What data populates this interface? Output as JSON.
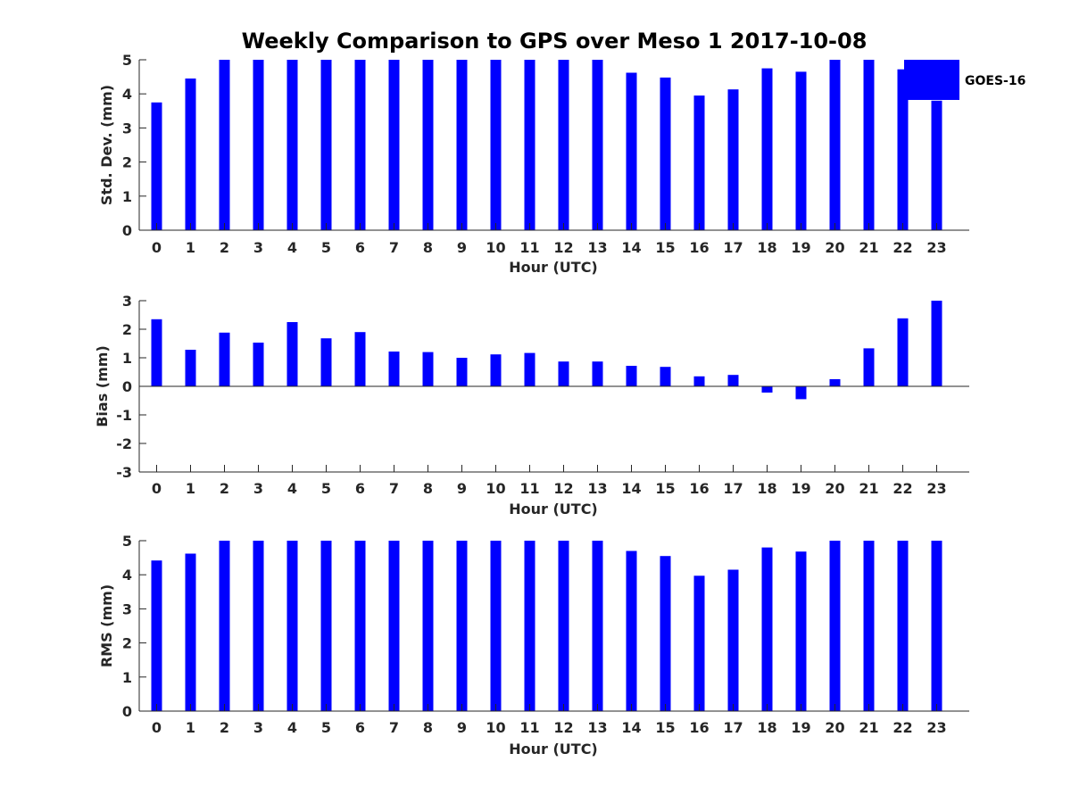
{
  "title": "Weekly Comparison to GPS over Meso 1 2017-10-08",
  "legend": {
    "label": "GOES-16",
    "color": "#0000ff"
  },
  "chart_data": [
    {
      "type": "bar",
      "ylabel": "Std. Dev. (mm)",
      "xlabel": "Hour (UTC)",
      "ylim": [
        0,
        5
      ],
      "yticks": [
        0,
        1,
        2,
        3,
        4,
        5
      ],
      "categories": [
        "0",
        "1",
        "2",
        "3",
        "4",
        "5",
        "6",
        "7",
        "8",
        "9",
        "10",
        "11",
        "12",
        "13",
        "14",
        "15",
        "16",
        "17",
        "18",
        "19",
        "20",
        "21",
        "22",
        "23"
      ],
      "series": [
        {
          "name": "GOES-16",
          "values": [
            3.75,
            4.45,
            5,
            5,
            5,
            5,
            5,
            5,
            5,
            5,
            5,
            5,
            5,
            5,
            4.62,
            4.48,
            3.95,
            4.13,
            4.75,
            4.65,
            5,
            5,
            4.72,
            3.8
          ]
        }
      ],
      "legend_position": "top-right"
    },
    {
      "type": "bar",
      "ylabel": "Bias (mm)",
      "xlabel": "Hour (UTC)",
      "ylim": [
        -3,
        3
      ],
      "yticks": [
        -3,
        -2,
        -1,
        0,
        1,
        2,
        3
      ],
      "zero_line": true,
      "categories": [
        "0",
        "1",
        "2",
        "3",
        "4",
        "5",
        "6",
        "7",
        "8",
        "9",
        "10",
        "11",
        "12",
        "13",
        "14",
        "15",
        "16",
        "17",
        "18",
        "19",
        "20",
        "21",
        "22",
        "23"
      ],
      "series": [
        {
          "name": "GOES-16",
          "values": [
            2.35,
            1.28,
            1.88,
            1.53,
            2.25,
            1.68,
            1.9,
            1.22,
            1.2,
            1.0,
            1.12,
            1.17,
            0.87,
            0.87,
            0.72,
            0.68,
            0.35,
            0.4,
            -0.22,
            -0.45,
            0.25,
            1.33,
            2.38,
            3.0
          ]
        }
      ]
    },
    {
      "type": "bar",
      "ylabel": "RMS (mm)",
      "xlabel": "Hour (UTC)",
      "ylim": [
        0,
        5
      ],
      "yticks": [
        0,
        1,
        2,
        3,
        4,
        5
      ],
      "categories": [
        "0",
        "1",
        "2",
        "3",
        "4",
        "5",
        "6",
        "7",
        "8",
        "9",
        "10",
        "11",
        "12",
        "13",
        "14",
        "15",
        "16",
        "17",
        "18",
        "19",
        "20",
        "21",
        "22",
        "23"
      ],
      "series": [
        {
          "name": "GOES-16",
          "values": [
            4.42,
            4.62,
            5,
            5,
            5,
            5,
            5,
            5,
            5,
            5,
            5,
            5,
            5,
            5,
            4.7,
            4.55,
            3.97,
            4.15,
            4.8,
            4.68,
            5,
            5,
            5,
            5
          ]
        }
      ]
    }
  ]
}
